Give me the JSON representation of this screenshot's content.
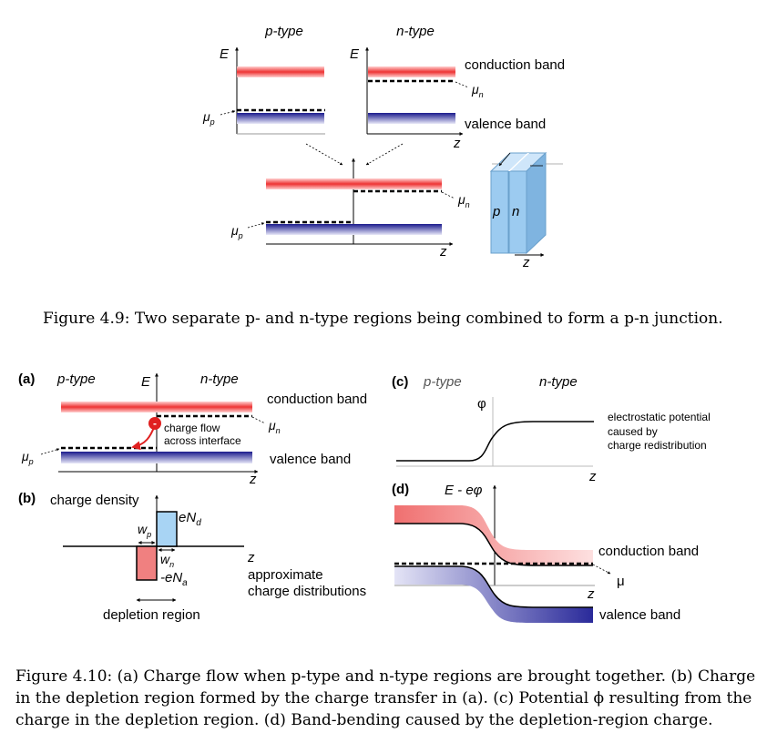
{
  "fig49": {
    "p_type": "p-type",
    "n_type": "n-type",
    "axis_E": "E",
    "axis_z": "z",
    "conduction_band": "conduction band",
    "valence_band": "valence band",
    "mu": "μ",
    "sub_p": "p",
    "sub_n": "n",
    "block_p": "p",
    "block_n": "n",
    "caption": "Figure 4.9: Two separate p- and n-type regions being combined to form a p-n junction."
  },
  "fig410": {
    "a": {
      "tag": "(a)",
      "p_type": "p-type",
      "n_type": "n-type",
      "axis_E": "E",
      "axis_z": "z",
      "conduction_band": "conduction band",
      "valence_band": "valence band",
      "charge_flow_1": "charge flow",
      "charge_flow_2": "across interface",
      "minus": "-"
    },
    "b": {
      "tag": "(b)",
      "charge_density": "charge density",
      "eNd_main": "eN",
      "eNd_sub": "d",
      "eNa_main": "-eN",
      "eNa_sub": "a",
      "wp_main": "w",
      "wp_sub": "p",
      "wn_main": "w",
      "wn_sub": "n",
      "axis_z": "z",
      "approx_1": "approximate",
      "approx_2": "charge distributions",
      "depletion": "depletion region"
    },
    "c": {
      "tag": "(c)",
      "p_type": "p-type",
      "n_type": "n-type",
      "axis_phi": "φ",
      "axis_z": "z",
      "note_1": "electrostatic potential",
      "note_2": "caused by",
      "note_3": "charge redistribution"
    },
    "d": {
      "tag": "(d)",
      "axis_label": "E - eφ",
      "axis_z": "z",
      "conduction_band": "conduction band",
      "valence_band": "valence band",
      "mu": "μ"
    },
    "caption_1": "Figure 4.10: (a) Charge flow when p-type and n-type regions are brought together. (b) Charge",
    "caption_2": "in the depletion region formed by the charge transfer in (a). (c) Potential ϕ resulting from the",
    "caption_3": "charge in the depletion region. (d) Band-bending caused by the depletion-region charge."
  },
  "colors": {
    "conduction": "#ee3333",
    "valence": "#1a1a8c",
    "pos_charge": "#a8d4f4",
    "neg_charge": "#f08080",
    "block": "#9ccbf0"
  }
}
